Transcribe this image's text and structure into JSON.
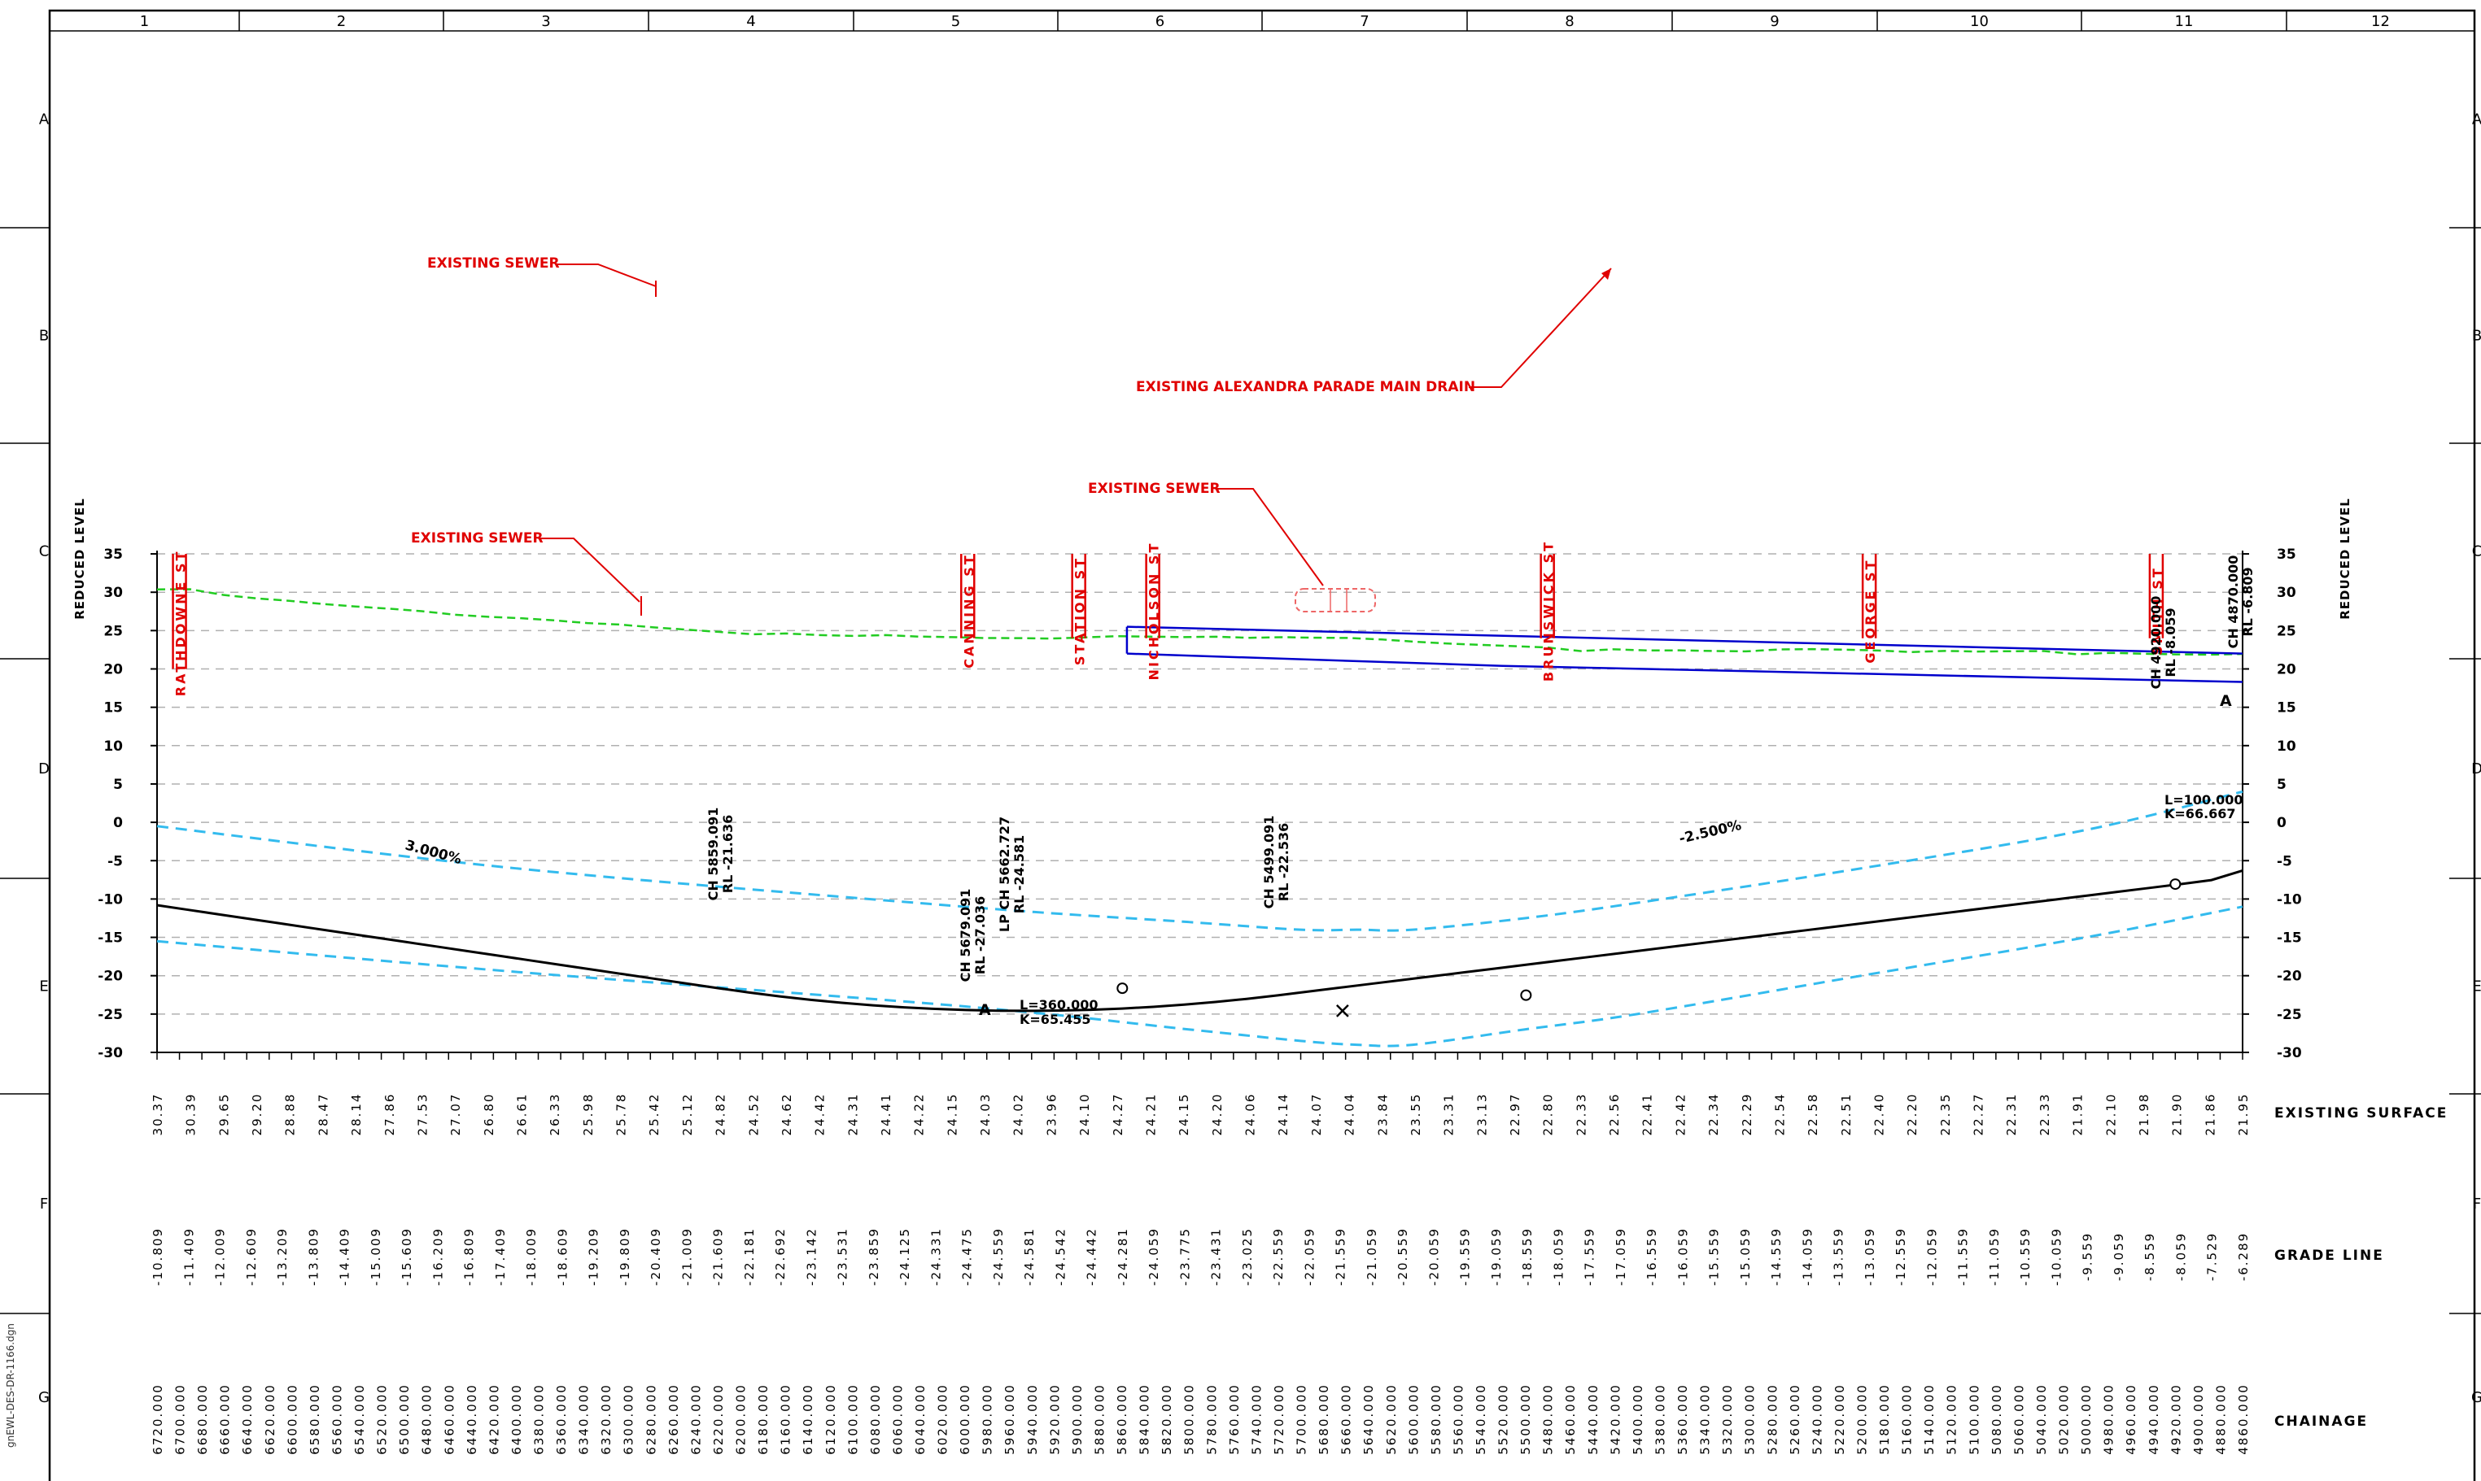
{
  "border": {
    "columns": [
      "1",
      "2",
      "3",
      "4",
      "5",
      "6",
      "7",
      "8",
      "9",
      "10",
      "11",
      "12"
    ],
    "rows": [
      "A",
      "B",
      "C",
      "D",
      "E",
      "F",
      "G"
    ]
  },
  "file_name": "gnEWL-DES-DR-1166.dgn",
  "axis": {
    "ylabel_left": "REDUCED LEVEL",
    "ylabel_right": "REDUCED LEVEL",
    "ylim": [
      -30,
      35
    ],
    "xlim": [
      6720,
      4860
    ],
    "yticks": [
      "35",
      "30",
      "25",
      "20",
      "15",
      "10",
      "5",
      "0",
      "-5",
      "-10",
      "-15",
      "-20",
      "-25",
      "-30"
    ],
    "grid": "dashed horizontal"
  },
  "streets": [
    {
      "label": "RATHDOWNE ST",
      "ch": 6700
    },
    {
      "label": "CANNING ST",
      "ch": 5997
    },
    {
      "label": "STATION ST",
      "ch": 5898
    },
    {
      "label": "NICHOLSON ST",
      "ch": 5832
    },
    {
      "label": "BRUNSWICK ST",
      "ch": 5480
    },
    {
      "label": "GEORGE ST",
      "ch": 5193
    },
    {
      "label": "SMITH ST",
      "ch": 4937
    }
  ],
  "annotations": {
    "sewer_upper": "EXISTING SEWER",
    "sewer_left": "EXISTING SEWER",
    "sewer_mid": "EXISTING SEWER",
    "drain": "EXISTING ALEXANDRA PARADE MAIN DRAIN",
    "grade_left": "3.000%",
    "grade_right": "-2.500%",
    "ip_a1": "A",
    "ip_a2": "A",
    "vc1": {
      "L": "L=360.000",
      "K": "K=65.455"
    },
    "vc2": {
      "L": "L=100.000",
      "K": "K=66.667"
    }
  },
  "points": [
    {
      "l1": "CH 5859.091",
      "l2": "RL -21.636",
      "ch": 5859.091,
      "rl": -21.636
    },
    {
      "l1": "CH 5679.091",
      "l2": "RL -27.036",
      "ch": 5679.091,
      "rl": -27.036
    },
    {
      "l1": "LP CH 5662.727",
      "l2": "RL -24.581",
      "ch": 5662.727,
      "rl": -24.581
    },
    {
      "l1": "CH 5499.091",
      "l2": "RL -22.536",
      "ch": 5499.091,
      "rl": -22.536
    },
    {
      "l1": "CH 4920.000",
      "l2": "RL -8.059",
      "ch": 4920.0,
      "rl": -8.059
    },
    {
      "l1": "CH 4870.000",
      "l2": "RL -6.809",
      "ch": 4870.0,
      "rl": -6.809
    }
  ],
  "band_labels": {
    "existing": "EXISTING SURFACE",
    "grade": "GRADE LINE",
    "chainage": "CHAINAGE"
  },
  "colors": {
    "frame": "#000000",
    "street": "#e00000",
    "surface": "#22cc22",
    "drain": "#0000cc",
    "envelope": "#33bbee",
    "grade": "#000000",
    "grid": "#b0b0b0"
  },
  "chart_data": {
    "type": "line",
    "xlabel": "CHAINAGE",
    "ylabel": "REDUCED LEVEL",
    "chainage": [
      "6720.000",
      "6700.000",
      "6680.000",
      "6660.000",
      "6640.000",
      "6620.000",
      "6600.000",
      "6580.000",
      "6560.000",
      "6540.000",
      "6520.000",
      "6500.000",
      "6480.000",
      "6460.000",
      "6440.000",
      "6420.000",
      "6400.000",
      "6380.000",
      "6360.000",
      "6340.000",
      "6320.000",
      "6300.000",
      "6280.000",
      "6260.000",
      "6240.000",
      "6220.000",
      "6200.000",
      "6180.000",
      "6160.000",
      "6140.000",
      "6120.000",
      "6100.000",
      "6080.000",
      "6060.000",
      "6040.000",
      "6020.000",
      "6000.000",
      "5980.000",
      "5960.000",
      "5940.000",
      "5920.000",
      "5900.000",
      "5880.000",
      "5860.000",
      "5840.000",
      "5820.000",
      "5800.000",
      "5780.000",
      "5760.000",
      "5740.000",
      "5720.000",
      "5700.000",
      "5680.000",
      "5660.000",
      "5640.000",
      "5620.000",
      "5600.000",
      "5580.000",
      "5560.000",
      "5540.000",
      "5520.000",
      "5500.000",
      "5480.000",
      "5460.000",
      "5440.000",
      "5420.000",
      "5400.000",
      "5380.000",
      "5360.000",
      "5340.000",
      "5320.000",
      "5300.000",
      "5280.000",
      "5260.000",
      "5240.000",
      "5220.000",
      "5200.000",
      "5180.000",
      "5160.000",
      "5140.000",
      "5120.000",
      "5100.000",
      "5080.000",
      "5060.000",
      "5040.000",
      "5020.000",
      "5000.000",
      "4980.000",
      "4960.000",
      "4940.000",
      "4920.000",
      "4900.000",
      "4880.000",
      "4860.000"
    ],
    "existing_surface": [
      "30.37",
      "30.39",
      "29.65",
      "29.20",
      "28.88",
      "28.47",
      "28.14",
      "27.86",
      "27.53",
      "27.07",
      "26.80",
      "26.61",
      "26.33",
      "25.98",
      "25.78",
      "25.42",
      "25.12",
      "24.82",
      "24.52",
      "24.62",
      "24.42",
      "24.31",
      "24.41",
      "24.22",
      "24.15",
      "24.03",
      "24.02",
      "23.96",
      "24.10",
      "24.27",
      "24.21",
      "24.15",
      "24.20",
      "24.06",
      "24.14",
      "24.07",
      "24.04",
      "23.84",
      "23.55",
      "23.31",
      "23.13",
      "22.97",
      "22.80",
      "22.33",
      "22.56",
      "22.41",
      "22.42",
      "22.34",
      "22.29",
      "22.54",
      "22.58",
      "22.51",
      "22.40",
      "22.20",
      "22.35",
      "22.27",
      "22.31",
      "22.33",
      "21.91",
      "22.10",
      "21.98",
      "21.90",
      "21.86",
      "21.95"
    ],
    "grade_line": [
      "-10.809",
      "-11.409",
      "-12.009",
      "-12.609",
      "-13.209",
      "-13.809",
      "-14.409",
      "-15.009",
      "-15.609",
      "-16.209",
      "-16.809",
      "-17.409",
      "-18.009",
      "-18.609",
      "-19.209",
      "-19.809",
      "-20.409",
      "-21.009",
      "-21.609",
      "-22.181",
      "-22.692",
      "-23.142",
      "-23.531",
      "-23.859",
      "-24.125",
      "-24.331",
      "-24.475",
      "-24.559",
      "-24.581",
      "-24.542",
      "-24.442",
      "-24.281",
      "-24.059",
      "-23.775",
      "-23.431",
      "-23.025",
      "-22.559",
      "-22.059",
      "-21.559",
      "-21.059",
      "-20.559",
      "-20.059",
      "-19.559",
      "-19.059",
      "-18.559",
      "-18.059",
      "-17.559",
      "-17.059",
      "-16.559",
      "-16.059",
      "-15.559",
      "-15.059",
      "-14.559",
      "-14.059",
      "-13.559",
      "-13.059",
      "-12.559",
      "-12.059",
      "-11.559",
      "-11.059",
      "-10.559",
      "-10.059",
      "-9.559",
      "-9.059",
      "-8.559",
      "-8.059",
      "-7.529",
      "-6.289"
    ]
  }
}
